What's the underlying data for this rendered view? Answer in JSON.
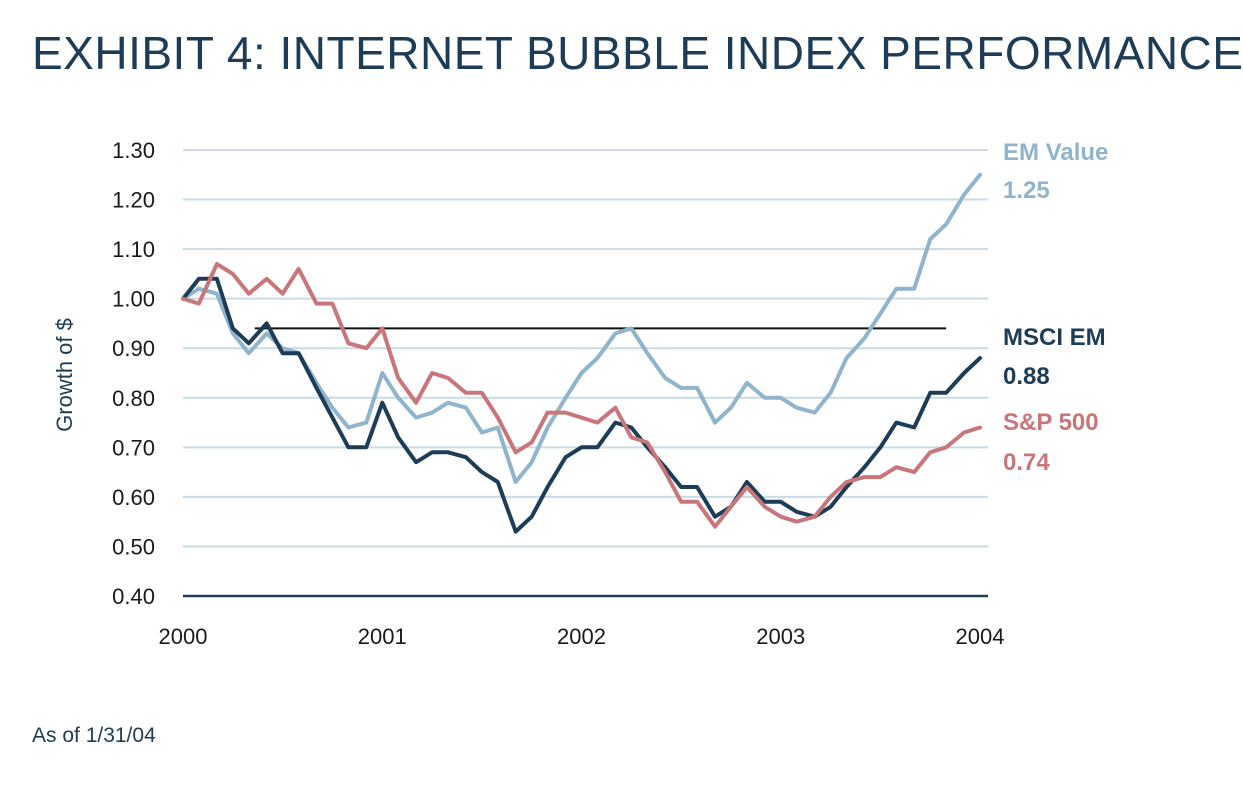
{
  "title": "EXHIBIT 4: INTERNET BUBBLE INDEX PERFORMANCE",
  "footnote": "As of 1/31/04",
  "colors": {
    "title": "#1d3c57",
    "grid": "#c8dbe6",
    "axis": "#1d3c57",
    "reference_line": "#111111"
  },
  "chart_data": {
    "type": "line",
    "title": "EXHIBIT 4: INTERNET BUBBLE INDEX PERFORMANCE",
    "xlabel": "",
    "ylabel": "Growth of $",
    "xlim": [
      2000,
      2004
    ],
    "ylim": [
      0.4,
      1.3
    ],
    "x_ticks": [
      2000,
      2001,
      2002,
      2003,
      2004
    ],
    "x_tick_labels": [
      "2000",
      "2001",
      "2002",
      "2003",
      "2004"
    ],
    "y_ticks": [
      0.4,
      0.5,
      0.6,
      0.7,
      0.8,
      0.9,
      1.0,
      1.1,
      1.2,
      1.3
    ],
    "y_tick_labels": [
      "0.40",
      "0.50",
      "0.60",
      "0.70",
      "0.80",
      "0.90",
      "1.00",
      "1.10",
      "1.20",
      "1.30"
    ],
    "grid": true,
    "reference_line": {
      "y": 0.94,
      "x_start": 2000.36,
      "x_end": 2003.83
    },
    "series": [
      {
        "name": "EM Value",
        "final_value": "1.25",
        "color": "#8fb4cb",
        "x": [
          2000.0,
          2000.08,
          2000.17,
          2000.25,
          2000.33,
          2000.42,
          2000.5,
          2000.58,
          2000.67,
          2000.75,
          2000.83,
          2000.92,
          2001.0,
          2001.08,
          2001.17,
          2001.25,
          2001.33,
          2001.42,
          2001.5,
          2001.58,
          2001.67,
          2001.75,
          2001.83,
          2001.92,
          2002.0,
          2002.08,
          2002.17,
          2002.25,
          2002.33,
          2002.42,
          2002.5,
          2002.58,
          2002.67,
          2002.75,
          2002.83,
          2002.92,
          2003.0,
          2003.08,
          2003.17,
          2003.25,
          2003.33,
          2003.42,
          2003.5,
          2003.58,
          2003.67,
          2003.75,
          2003.83,
          2003.92,
          2004.0
        ],
        "values": [
          1.0,
          1.02,
          1.01,
          0.93,
          0.89,
          0.93,
          0.9,
          0.89,
          0.83,
          0.78,
          0.74,
          0.75,
          0.85,
          0.8,
          0.76,
          0.77,
          0.79,
          0.78,
          0.73,
          0.74,
          0.63,
          0.67,
          0.74,
          0.8,
          0.85,
          0.88,
          0.93,
          0.94,
          0.89,
          0.84,
          0.82,
          0.82,
          0.75,
          0.78,
          0.83,
          0.8,
          0.8,
          0.78,
          0.77,
          0.81,
          0.88,
          0.92,
          0.97,
          1.02,
          1.02,
          1.12,
          1.15,
          1.21,
          1.25
        ]
      },
      {
        "name": "MSCI EM",
        "final_value": "0.88",
        "color": "#1d3c57",
        "x": [
          2000.0,
          2000.08,
          2000.17,
          2000.25,
          2000.33,
          2000.42,
          2000.5,
          2000.58,
          2000.67,
          2000.75,
          2000.83,
          2000.92,
          2001.0,
          2001.08,
          2001.17,
          2001.25,
          2001.33,
          2001.42,
          2001.5,
          2001.58,
          2001.67,
          2001.75,
          2001.83,
          2001.92,
          2002.0,
          2002.08,
          2002.17,
          2002.25,
          2002.33,
          2002.42,
          2002.5,
          2002.58,
          2002.67,
          2002.75,
          2002.83,
          2002.92,
          2003.0,
          2003.08,
          2003.17,
          2003.25,
          2003.33,
          2003.42,
          2003.5,
          2003.58,
          2003.67,
          2003.75,
          2003.83,
          2003.92,
          2004.0
        ],
        "values": [
          1.0,
          1.04,
          1.04,
          0.94,
          0.91,
          0.95,
          0.89,
          0.89,
          0.82,
          0.76,
          0.7,
          0.7,
          0.79,
          0.72,
          0.67,
          0.69,
          0.69,
          0.68,
          0.65,
          0.63,
          0.53,
          0.56,
          0.62,
          0.68,
          0.7,
          0.7,
          0.75,
          0.74,
          0.7,
          0.66,
          0.62,
          0.62,
          0.56,
          0.58,
          0.63,
          0.59,
          0.59,
          0.57,
          0.56,
          0.58,
          0.62,
          0.66,
          0.7,
          0.75,
          0.74,
          0.81,
          0.81,
          0.85,
          0.88
        ]
      },
      {
        "name": "S&P 500",
        "final_value": "0.74",
        "color": "#c8767a",
        "x": [
          2000.0,
          2000.08,
          2000.17,
          2000.25,
          2000.33,
          2000.42,
          2000.5,
          2000.58,
          2000.67,
          2000.75,
          2000.83,
          2000.92,
          2001.0,
          2001.08,
          2001.17,
          2001.25,
          2001.33,
          2001.42,
          2001.5,
          2001.58,
          2001.67,
          2001.75,
          2001.83,
          2001.92,
          2002.0,
          2002.08,
          2002.17,
          2002.25,
          2002.33,
          2002.42,
          2002.5,
          2002.58,
          2002.67,
          2002.75,
          2002.83,
          2002.92,
          2003.0,
          2003.08,
          2003.17,
          2003.25,
          2003.33,
          2003.42,
          2003.5,
          2003.58,
          2003.67,
          2003.75,
          2003.83,
          2003.92,
          2004.0
        ],
        "values": [
          1.0,
          0.99,
          1.07,
          1.05,
          1.01,
          1.04,
          1.01,
          1.06,
          0.99,
          0.99,
          0.91,
          0.9,
          0.94,
          0.84,
          0.79,
          0.85,
          0.84,
          0.81,
          0.81,
          0.76,
          0.69,
          0.71,
          0.77,
          0.77,
          0.76,
          0.75,
          0.78,
          0.72,
          0.71,
          0.65,
          0.59,
          0.59,
          0.54,
          0.58,
          0.62,
          0.58,
          0.56,
          0.55,
          0.56,
          0.6,
          0.63,
          0.64,
          0.64,
          0.66,
          0.65,
          0.69,
          0.7,
          0.73,
          0.74
        ]
      }
    ]
  }
}
